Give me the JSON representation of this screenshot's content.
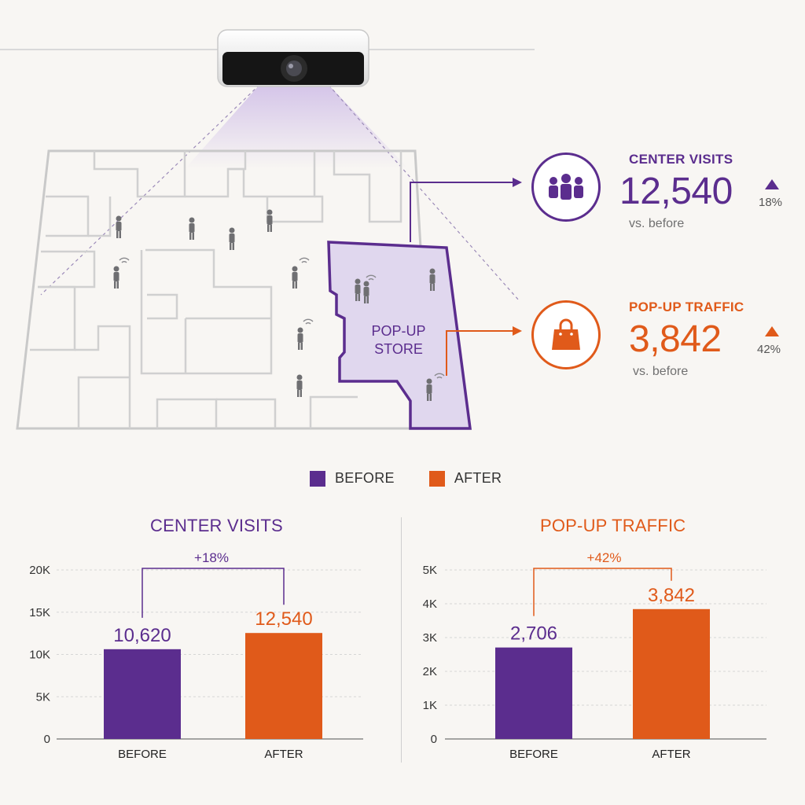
{
  "colors": {
    "before": "#5b2d8e",
    "after": "#e05a1a",
    "store_fill": "#e0d7ee"
  },
  "map": {
    "store_label_line1": "POP-UP",
    "store_label_line2": "STORE"
  },
  "stats": {
    "center_visits": {
      "label": "CENTER VISITS",
      "value": "12,540",
      "sub": "vs. before",
      "pct": "18%",
      "icon": "people-icon"
    },
    "popup_traffic": {
      "label": "POP-UP TRAFFIC",
      "value": "3,842",
      "sub": "vs. before",
      "pct": "42%",
      "icon": "shopping-bag-icon"
    }
  },
  "legend": {
    "before": "BEFORE",
    "after": "AFTER"
  },
  "chart_data": [
    {
      "type": "bar",
      "title": "CENTER VISITS",
      "categories": [
        "BEFORE",
        "AFTER"
      ],
      "values": [
        10620,
        12540
      ],
      "value_labels": [
        "10,620",
        "12,540"
      ],
      "ylim": [
        0,
        20000
      ],
      "yticks": [
        0,
        5000,
        10000,
        15000,
        20000
      ],
      "ytick_labels": [
        "0",
        "5K",
        "10K",
        "15K",
        "20K"
      ],
      "annotation": "+18%",
      "grid": true
    },
    {
      "type": "bar",
      "title": "POP-UP TRAFFIC",
      "categories": [
        "BEFORE",
        "AFTER"
      ],
      "values": [
        2706,
        3842
      ],
      "value_labels": [
        "2,706",
        "3,842"
      ],
      "ylim": [
        0,
        5000
      ],
      "yticks": [
        0,
        1000,
        2000,
        3000,
        4000,
        5000
      ],
      "ytick_labels": [
        "0",
        "1K",
        "2K",
        "3K",
        "4K",
        "5K"
      ],
      "annotation": "+42%",
      "grid": true
    }
  ]
}
